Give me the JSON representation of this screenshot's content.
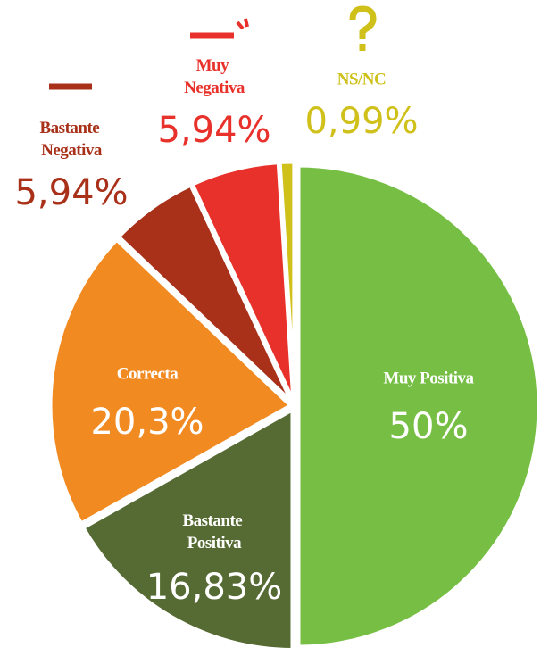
{
  "chart_data": {
    "type": "pie",
    "categories": [
      "Muy Positiva",
      "Bastante Positiva",
      "Correcta",
      "Bastante Negativa",
      "Muy Negativa",
      "NS/NC"
    ],
    "values": [
      50,
      16.83,
      20.3,
      5.94,
      5.94,
      0.99
    ],
    "value_labels": [
      "50%",
      "16,83%",
      "20,3%",
      "5,94%",
      "5,94%",
      "0,99%"
    ],
    "colors": [
      "#76bf44",
      "#566b33",
      "#f28a22",
      "#a9311a",
      "#e8312a",
      "#cfc01a"
    ]
  }
}
